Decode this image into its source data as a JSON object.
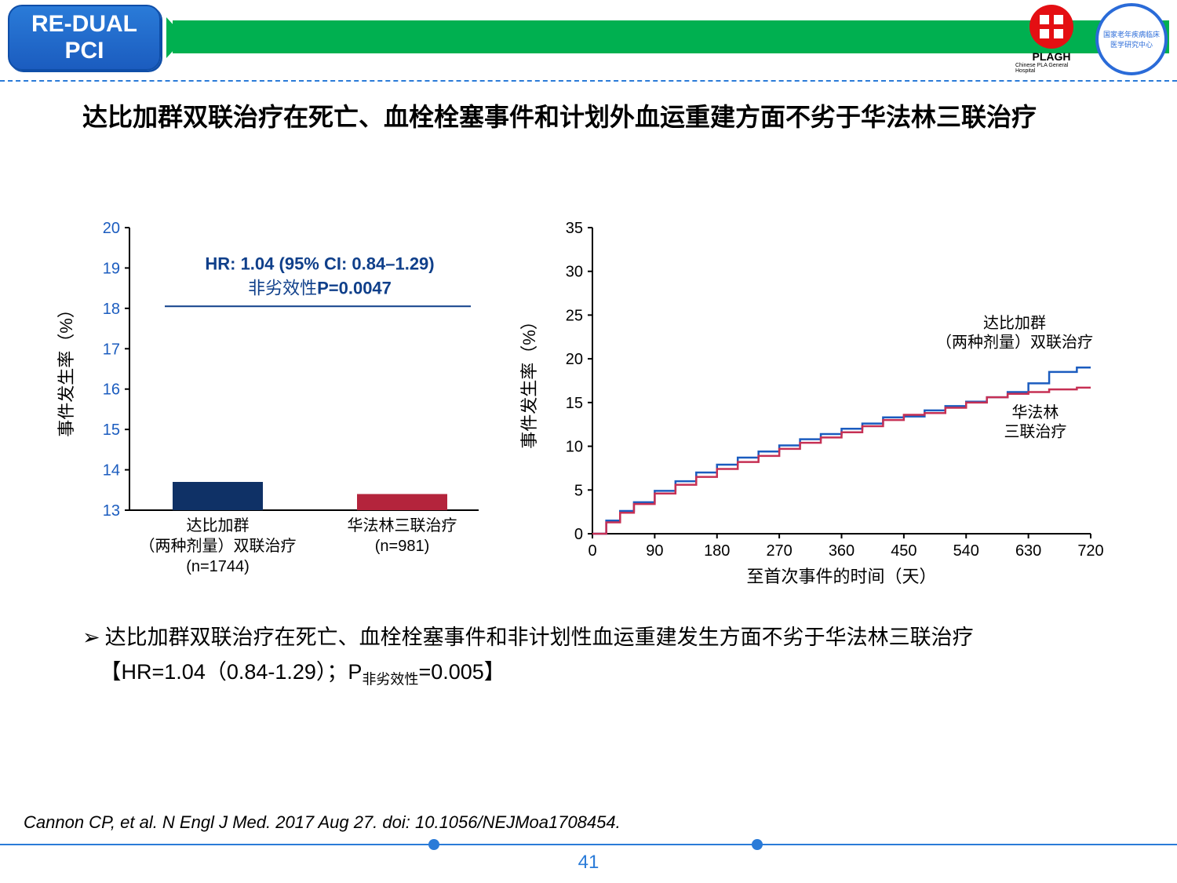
{
  "header": {
    "badge_line1": "RE-DUAL",
    "badge_line2": "PCI",
    "green_color": "#00b050",
    "badge_color": "#1b5cbf",
    "logo1_text": "PLAGH",
    "logo1_sub": "Chinese PLA General Hospital",
    "logo2_text": "国家老年疾病临床医学研究中心"
  },
  "title": "达比加群双联治疗在死亡、血栓栓塞事件和计划外血运重建方面不劣于华法林三联治疗",
  "bar_chart": {
    "type": "bar",
    "ylabel": "事件发生率（%）",
    "ylim": [
      13,
      20
    ],
    "yticks": [
      13,
      14,
      15,
      16,
      17,
      18,
      19,
      20
    ],
    "hr_text": "HR: 1.04 (95% CI: 0.84–1.29)",
    "nonif_label": "非劣效性",
    "p_text": "P=0.0047",
    "hr_color": "#0f3f8a",
    "bars": [
      {
        "label_l1": "达比加群",
        "label_l2": "（两种剂量）双联治疗",
        "label_l3": "(n=1744)",
        "value": 13.7,
        "color": "#0f3166"
      },
      {
        "label_l1": "华法林三联治疗",
        "label_l2": "",
        "label_l3": "(n=981)",
        "value": 13.4,
        "color": "#b4243c"
      }
    ],
    "axis_color": "#000000",
    "tick_color": "#1b5cbf",
    "label_fontsize": 22
  },
  "line_chart": {
    "type": "line-step",
    "ylabel": "事件发生率（%）",
    "xlabel": "至首次事件的时间（天）",
    "xlim": [
      0,
      720
    ],
    "ylim": [
      0,
      35
    ],
    "xticks": [
      0,
      90,
      180,
      270,
      360,
      450,
      540,
      630,
      720
    ],
    "yticks": [
      0,
      5,
      10,
      15,
      20,
      25,
      30,
      35
    ],
    "series": [
      {
        "name": "dabigatran",
        "label_l1": "达比加群",
        "label_l2": "（两种剂量）双联治疗",
        "color": "#1b5cbf",
        "points": [
          [
            0,
            0
          ],
          [
            20,
            1.5
          ],
          [
            40,
            2.6
          ],
          [
            60,
            3.6
          ],
          [
            90,
            4.9
          ],
          [
            120,
            6.0
          ],
          [
            150,
            7.0
          ],
          [
            180,
            7.9
          ],
          [
            210,
            8.7
          ],
          [
            240,
            9.4
          ],
          [
            270,
            10.1
          ],
          [
            300,
            10.8
          ],
          [
            330,
            11.4
          ],
          [
            360,
            12.0
          ],
          [
            390,
            12.6
          ],
          [
            420,
            13.3
          ],
          [
            450,
            13.4
          ],
          [
            480,
            14.1
          ],
          [
            510,
            14.6
          ],
          [
            540,
            15.1
          ],
          [
            570,
            15.6
          ],
          [
            600,
            16.2
          ],
          [
            630,
            17.2
          ],
          [
            660,
            18.5
          ],
          [
            700,
            19.0
          ],
          [
            720,
            19.0
          ]
        ]
      },
      {
        "name": "warfarin",
        "label_l1": "华法林",
        "label_l2": "三联治疗",
        "color": "#c63054",
        "points": [
          [
            0,
            0
          ],
          [
            20,
            1.3
          ],
          [
            40,
            2.4
          ],
          [
            60,
            3.4
          ],
          [
            90,
            4.6
          ],
          [
            120,
            5.6
          ],
          [
            150,
            6.5
          ],
          [
            180,
            7.4
          ],
          [
            210,
            8.2
          ],
          [
            240,
            8.9
          ],
          [
            270,
            9.7
          ],
          [
            300,
            10.4
          ],
          [
            330,
            11.0
          ],
          [
            360,
            11.6
          ],
          [
            390,
            12.3
          ],
          [
            420,
            13.0
          ],
          [
            450,
            13.6
          ],
          [
            480,
            13.8
          ],
          [
            510,
            14.4
          ],
          [
            540,
            15.0
          ],
          [
            570,
            15.6
          ],
          [
            600,
            16.0
          ],
          [
            630,
            16.2
          ],
          [
            660,
            16.5
          ],
          [
            700,
            16.7
          ],
          [
            720,
            16.7
          ]
        ]
      }
    ],
    "axis_color": "#000000",
    "label_fontsize": 22
  },
  "bullet": {
    "text_a": "达比加群双联治疗在死亡、血栓栓塞事件和非计划性血运重建发生方面不劣于华法林三联治疗",
    "text_b_prefix": "【HR=1.04（0.84-1.29）；P",
    "text_b_sub": "非劣效性",
    "text_b_suffix": "=0.005】"
  },
  "citation": "Cannon CP, et al. N Engl J Med. 2017 Aug 27. doi: 10.1056/NEJMoa1708454.",
  "page": "41"
}
